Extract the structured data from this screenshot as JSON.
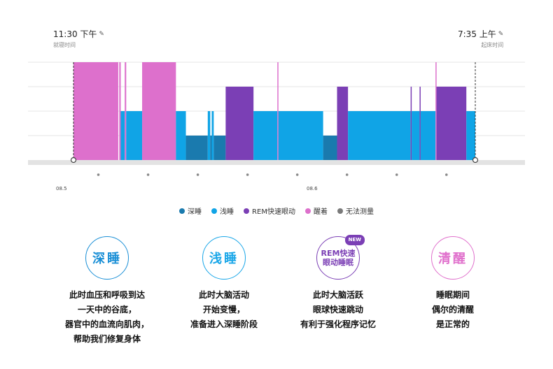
{
  "bed_time": {
    "time": "11:30 下午",
    "sub": "就寝时间"
  },
  "wake_time": {
    "time": "7:35 上午",
    "sub": "起床时间"
  },
  "dates": {
    "start": "08.5",
    "next": "08.6"
  },
  "chart_data": {
    "type": "bar",
    "x_unit": "hour of night (decimal, 23.5 = 11:30 PM)",
    "x_range": [
      23.5,
      31.58
    ],
    "stage_levels": {
      "deep": 1,
      "light": 2,
      "rem": 3,
      "awake": 4
    },
    "colors": {
      "deep": "#1a7aae",
      "light": "#10a4e6",
      "rem": "#7b3fb5",
      "awake": "#dd70cc",
      "unmeasured": "#7a7a7a"
    },
    "segments": [
      {
        "stage": "awake",
        "start": 23.5,
        "end": 24.4
      },
      {
        "stage": "awake",
        "start": 24.42,
        "end": 24.45
      },
      {
        "stage": "light",
        "start": 24.45,
        "end": 24.53
      },
      {
        "stage": "awake",
        "start": 24.53,
        "end": 24.56
      },
      {
        "stage": "light",
        "start": 24.56,
        "end": 24.88
      },
      {
        "stage": "awake",
        "start": 24.88,
        "end": 25.56
      },
      {
        "stage": "light",
        "start": 25.56,
        "end": 25.76
      },
      {
        "stage": "deep",
        "start": 25.76,
        "end": 26.2
      },
      {
        "stage": "light",
        "start": 26.2,
        "end": 26.25
      },
      {
        "stage": "deep",
        "start": 26.25,
        "end": 26.28
      },
      {
        "stage": "light",
        "start": 26.28,
        "end": 26.32
      },
      {
        "stage": "deep",
        "start": 26.32,
        "end": 26.56
      },
      {
        "stage": "rem",
        "start": 26.56,
        "end": 27.12
      },
      {
        "stage": "light",
        "start": 27.12,
        "end": 27.6
      },
      {
        "stage": "awake",
        "start": 27.6,
        "end": 27.62
      },
      {
        "stage": "light",
        "start": 27.62,
        "end": 28.52
      },
      {
        "stage": "deep",
        "start": 28.52,
        "end": 28.8
      },
      {
        "stage": "rem",
        "start": 28.8,
        "end": 29.02
      },
      {
        "stage": "light",
        "start": 29.02,
        "end": 30.28
      },
      {
        "stage": "rem",
        "start": 30.28,
        "end": 30.3
      },
      {
        "stage": "light",
        "start": 30.3,
        "end": 30.46
      },
      {
        "stage": "rem",
        "start": 30.46,
        "end": 30.48
      },
      {
        "stage": "light",
        "start": 30.48,
        "end": 30.78
      },
      {
        "stage": "awake",
        "start": 30.78,
        "end": 30.8
      },
      {
        "stage": "rem",
        "start": 30.8,
        "end": 31.4
      },
      {
        "stage": "light",
        "start": 31.4,
        "end": 31.58
      }
    ]
  },
  "legend": [
    {
      "label": "深睡",
      "color": "#1a7aae"
    },
    {
      "label": "浅睡",
      "color": "#10a4e6"
    },
    {
      "label": "REM快速眼动",
      "color": "#7b3fb5"
    },
    {
      "label": "醒着",
      "color": "#dd70cc"
    },
    {
      "label": "无法测量",
      "color": "#7a7a7a"
    }
  ],
  "stages": [
    {
      "title": "深睡",
      "color": "#1a8fd6",
      "badge": "",
      "lines": [
        "此时血压和呼吸到达",
        "一天中的谷底，",
        "器官中的血流向肌肉，",
        "帮助我们修复身体"
      ]
    },
    {
      "title": "浅睡",
      "color": "#18a6e8",
      "badge": "",
      "lines": [
        "此时大脑活动",
        "开始变慢，",
        "准备进入深睡阶段"
      ]
    },
    {
      "title_lines": [
        "REM快速",
        "眼动睡眠"
      ],
      "color": "#7b3fb5",
      "badge": "NEW",
      "lines": [
        "此时大脑活跃",
        "眼球快速跳动",
        "有利于强化程序记忆"
      ]
    },
    {
      "title": "清醒",
      "color": "#e070cc",
      "badge": "",
      "lines": [
        "睡眠期间",
        "偶尔的清醒",
        "是正常的"
      ]
    }
  ]
}
